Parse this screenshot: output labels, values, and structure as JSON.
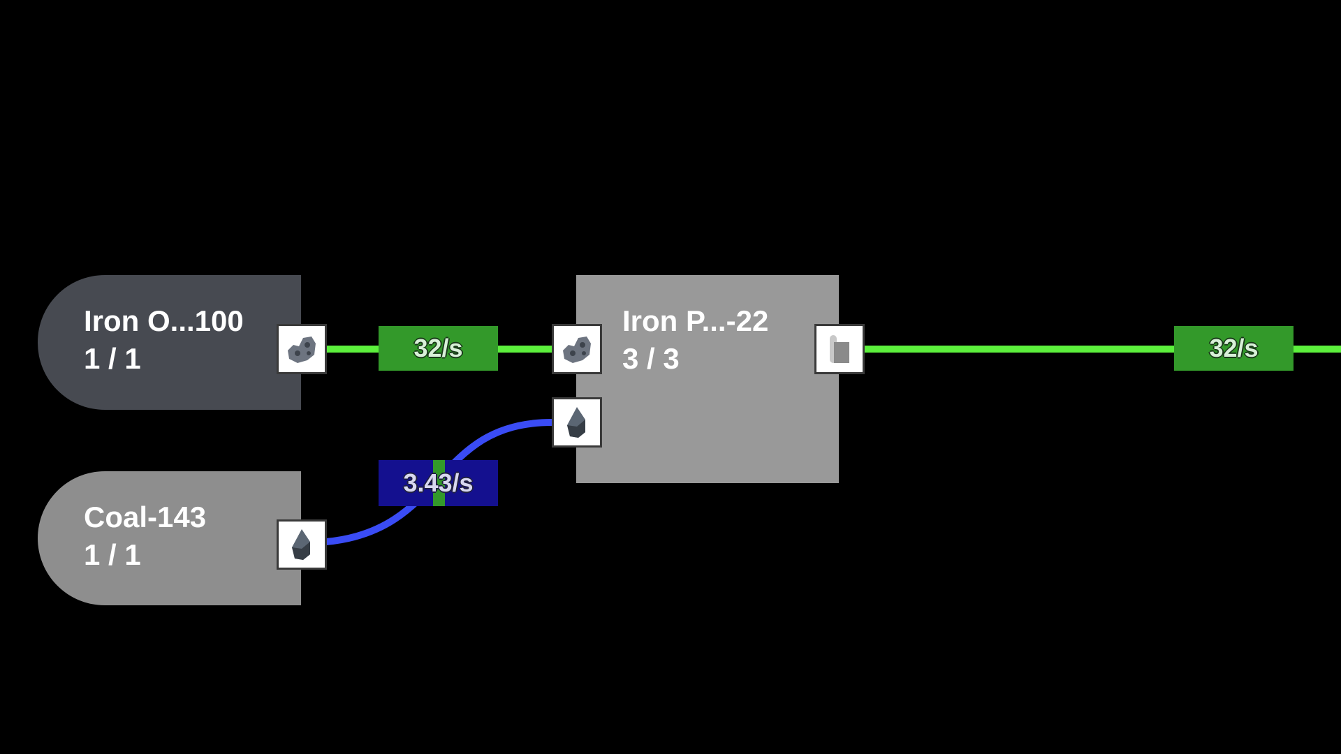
{
  "nodes": {
    "iron_ore": {
      "title": "Iron O...100",
      "count": "1 / 1",
      "color": "#474a51",
      "output_icon": "iron-ore-icon"
    },
    "coal": {
      "title": "Coal-143",
      "count": "1 / 1",
      "color": "#8e8e8e",
      "output_icon": "coal-icon"
    },
    "iron_plate": {
      "title": "Iron P...-22",
      "count": "3 / 3",
      "color": "#999999",
      "input_icons": [
        "iron-ore-icon",
        "coal-icon"
      ],
      "output_icon": "iron-plate-icon"
    }
  },
  "links": {
    "ore_to_plate": {
      "rate": "32/s",
      "line_color": "#5cf03c",
      "label_color": "#33992a"
    },
    "coal_to_plate": {
      "rate": "3.43/s",
      "line_color": "#3a4cf5",
      "label_color": "#14108f",
      "stripe_color": "#33992a"
    },
    "plate_out": {
      "rate": "32/s",
      "line_color": "#5cf03c",
      "label_color": "#33992a"
    }
  }
}
